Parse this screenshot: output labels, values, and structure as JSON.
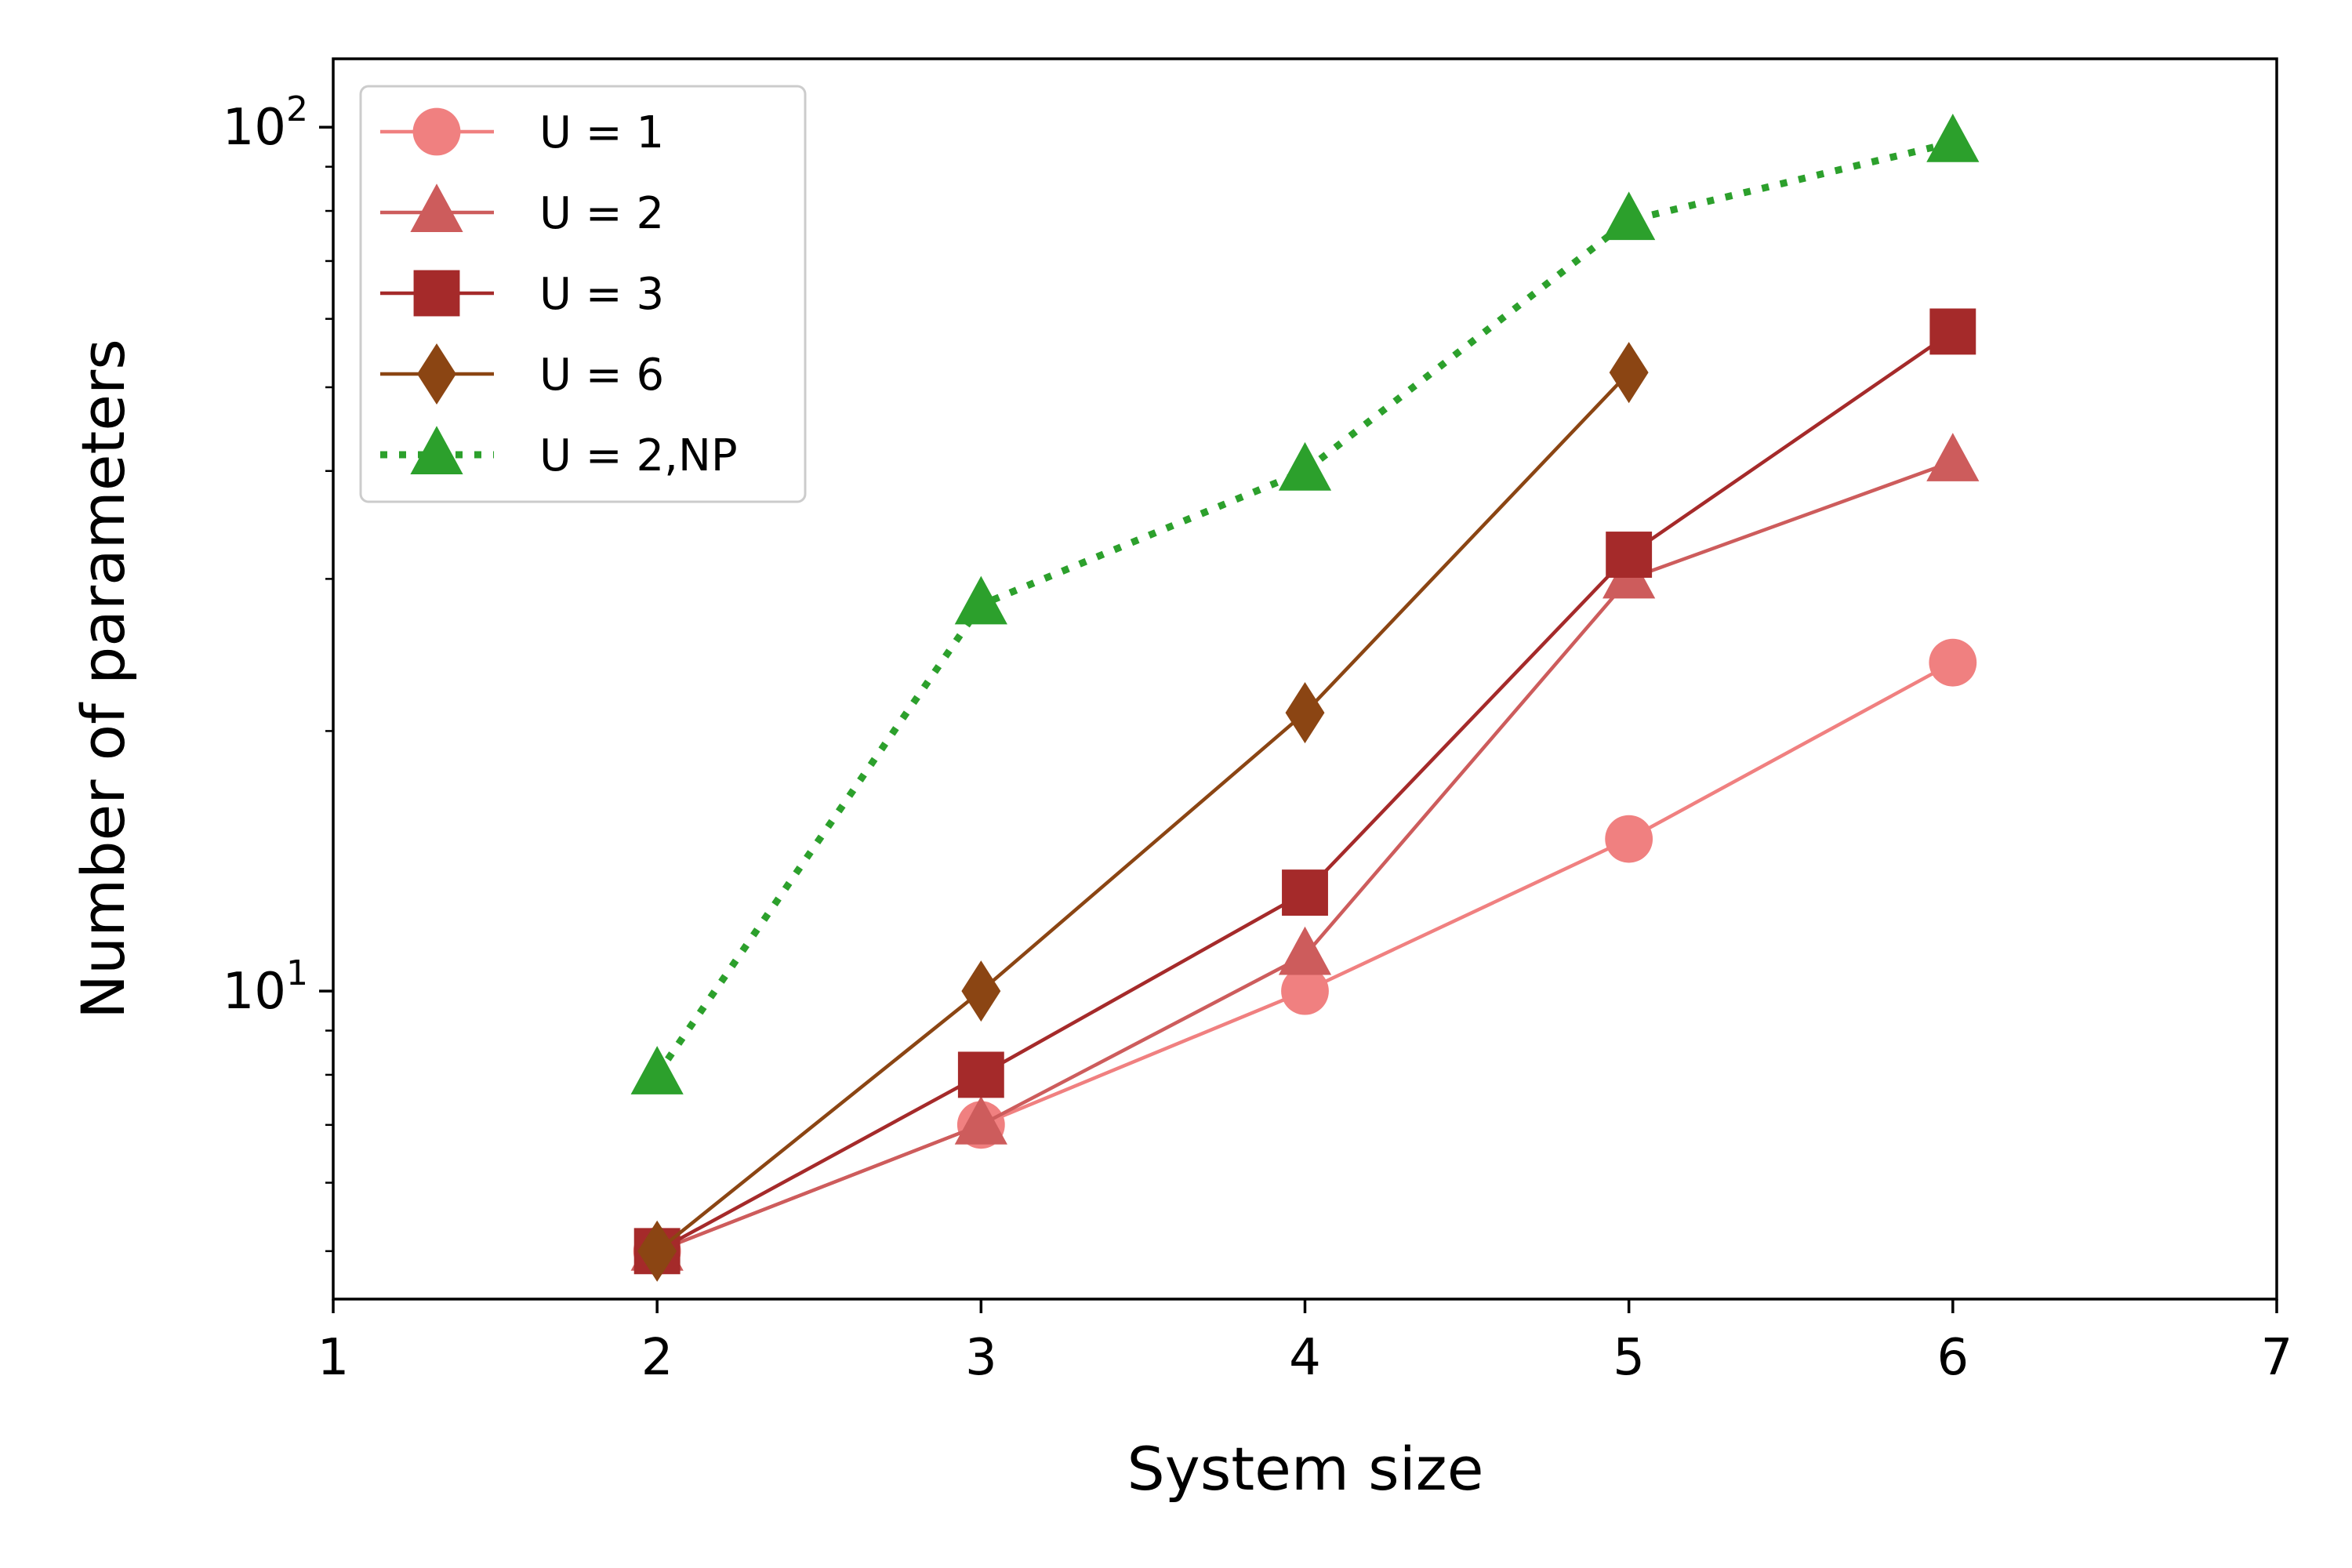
{
  "chart_data": {
    "type": "line",
    "title": "",
    "xlabel": "System size",
    "ylabel": "Number of parameters",
    "xlim": [
      1,
      7
    ],
    "ylim": [
      4.4,
      120
    ],
    "yscale": "log",
    "grid": false,
    "legend_position": "top-left",
    "xticks": [
      1,
      2,
      3,
      4,
      5,
      6,
      7
    ],
    "xtick_labels": [
      "1",
      "2",
      "3",
      "4",
      "5",
      "6",
      "7"
    ],
    "yticks_major": [
      {
        "value": 10,
        "base": "10",
        "exp": "1"
      },
      {
        "value": 100,
        "base": "10",
        "exp": "2"
      }
    ],
    "series": [
      {
        "name": "U = 1",
        "color": "#f08080",
        "marker": "circle",
        "line": "solid",
        "x": [
          2,
          3,
          4,
          5,
          6
        ],
        "y": [
          5,
          7,
          10,
          15,
          24
        ]
      },
      {
        "name": "U = 2",
        "color": "#cd5c5c",
        "marker": "triangle",
        "line": "solid",
        "x": [
          2,
          3,
          4,
          5,
          6
        ],
        "y": [
          5,
          7,
          11,
          30,
          41
        ]
      },
      {
        "name": "U = 3",
        "color": "#a52a2a",
        "marker": "square",
        "line": "solid",
        "x": [
          2,
          3,
          4,
          5,
          6
        ],
        "y": [
          5,
          8,
          13,
          32,
          58
        ]
      },
      {
        "name": "U = 6",
        "color": "#8b4513",
        "marker": "diamond",
        "line": "solid",
        "x": [
          2,
          3,
          4,
          5
        ],
        "y": [
          5,
          10,
          21,
          52
        ]
      },
      {
        "name": "U = 2,NP",
        "color": "#2ca02c",
        "marker": "triangle",
        "line": "dotted",
        "x": [
          2,
          3,
          4,
          5,
          6
        ],
        "y": [
          8,
          28,
          40,
          78,
          96
        ]
      }
    ]
  }
}
